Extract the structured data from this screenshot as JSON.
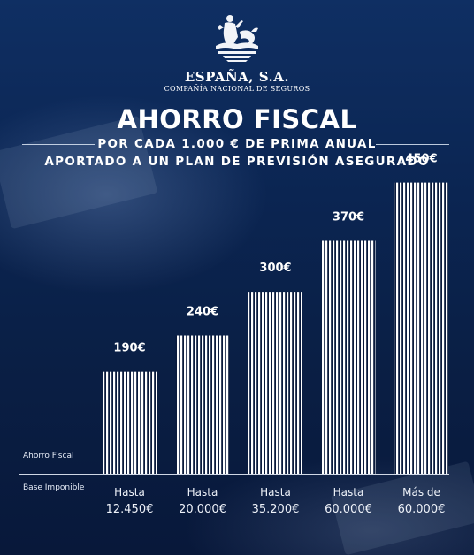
{
  "brand": {
    "name": "ESPAÑA, S.A.",
    "tagline": "COMPAÑÍA NACIONAL DE SEGUROS"
  },
  "colors": {
    "bar_stripe": "#ffffff",
    "background": "#0b2552"
  },
  "chart_data": {
    "type": "bar",
    "title": "AHORRO FISCAL",
    "subtitle_lines": [
      "POR CADA 1.000 € DE PRIMA ANUAL",
      "APORTADO A UN PLAN DE PREVISIÓN ASEGURADO"
    ],
    "row_labels": {
      "ahorro": "Ahorro Fiscal",
      "base": "Base Imponible"
    },
    "categories": [
      [
        "Hasta",
        "12.450€"
      ],
      [
        "Hasta",
        "20.000€"
      ],
      [
        "Hasta",
        "35.200€"
      ],
      [
        "Hasta",
        "60.000€"
      ],
      [
        "Más de",
        "60.000€"
      ]
    ],
    "values": [
      190,
      240,
      300,
      370,
      450
    ],
    "value_labels": [
      "190€",
      "240€",
      "300€",
      "370€",
      "450€"
    ]
  }
}
